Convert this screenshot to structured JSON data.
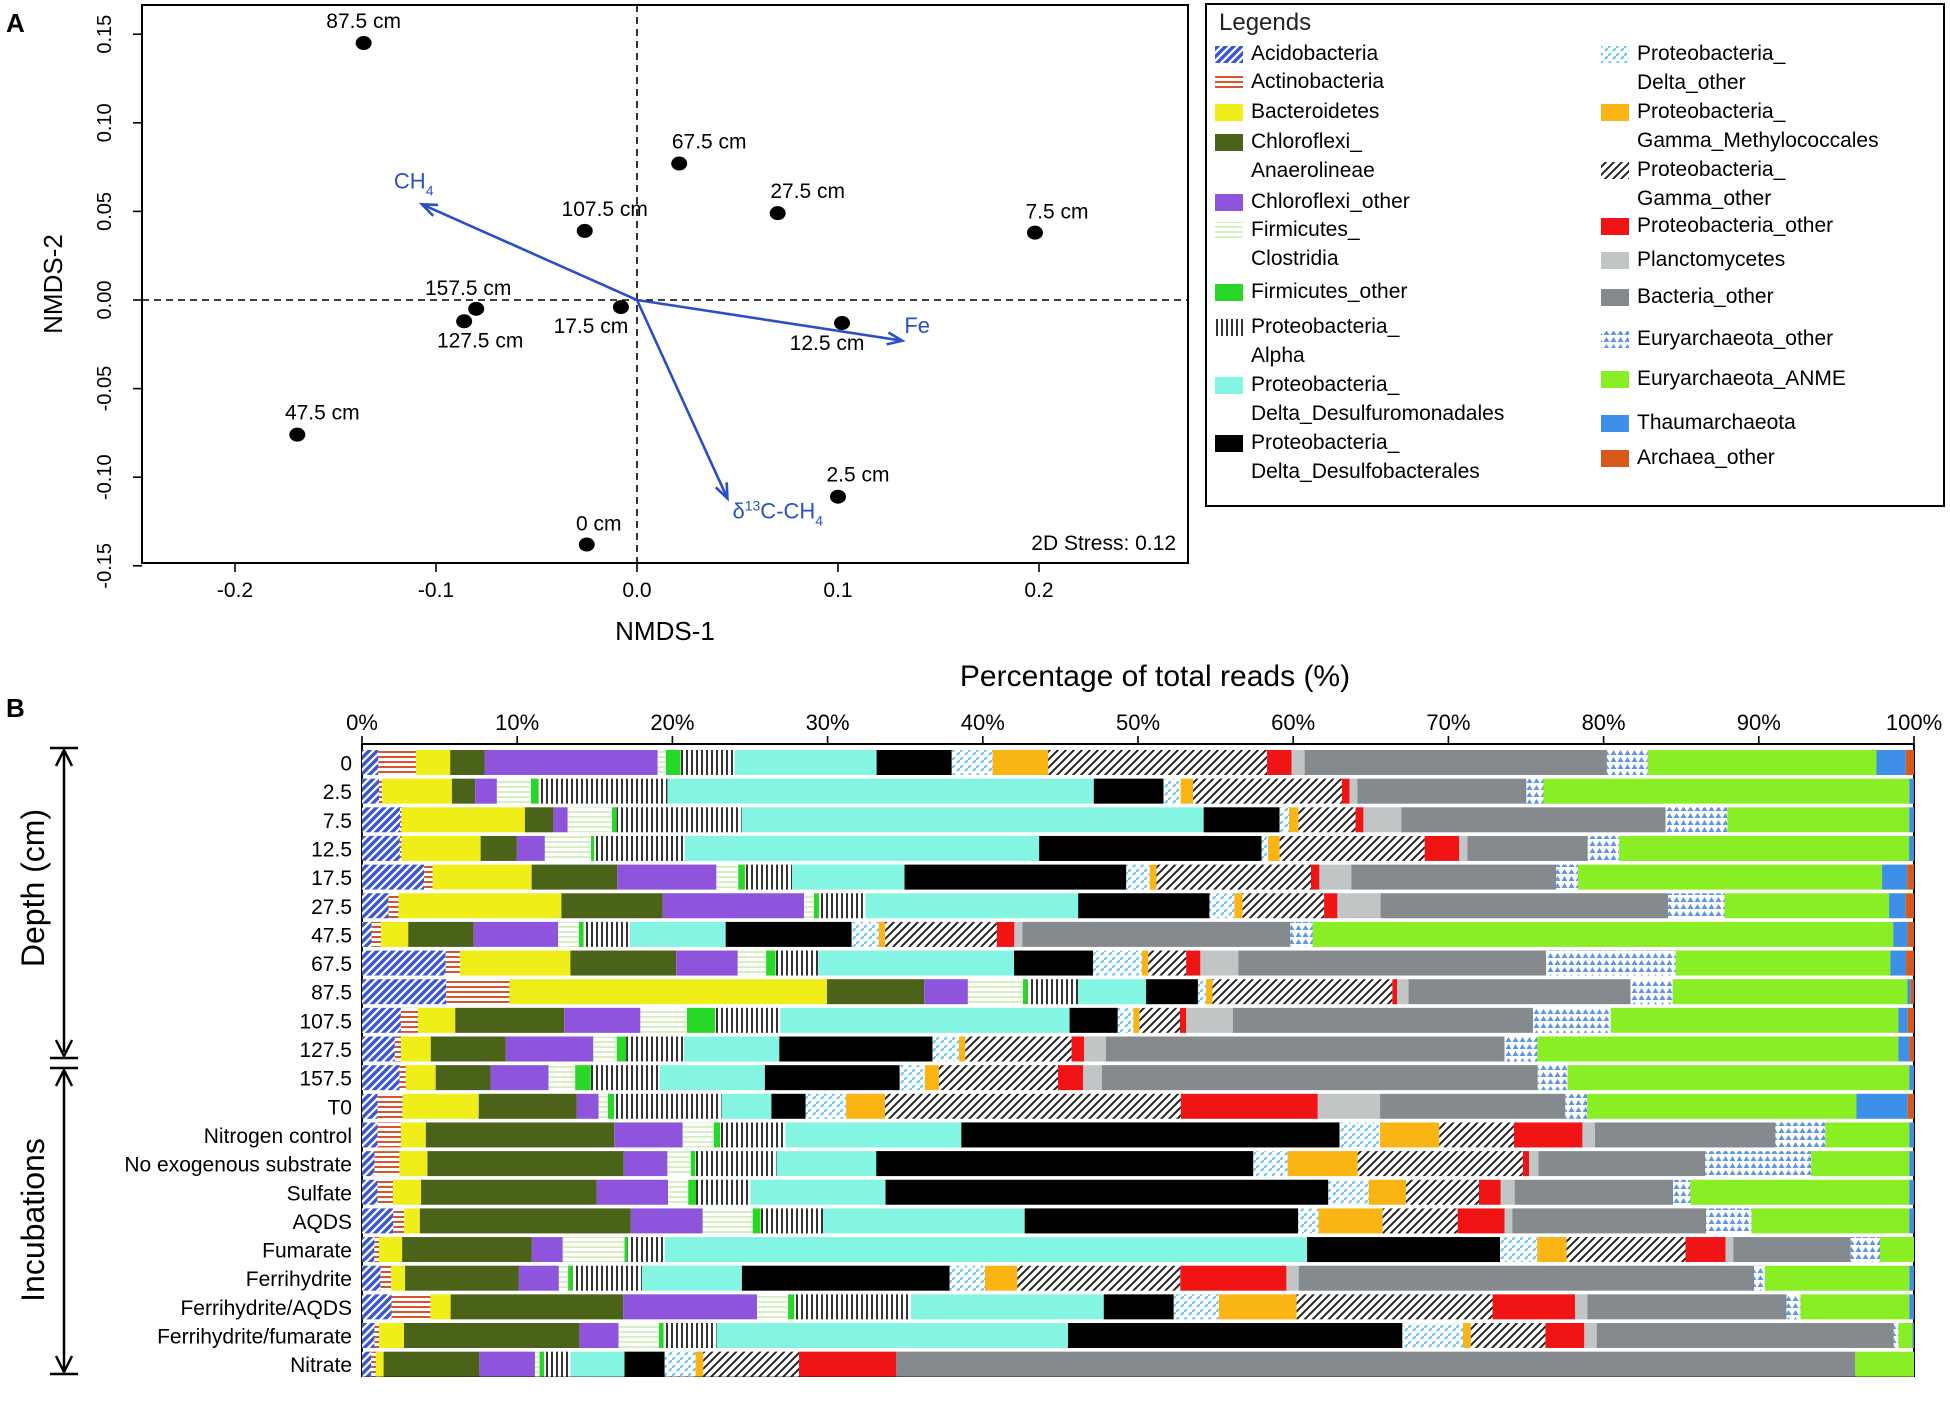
{
  "panel_labels": {
    "a": "A",
    "b": "B"
  },
  "colors": {
    "Acidobacteria": "#3a55d6",
    "Actinobacteria": "#d8532a",
    "Bacteroidetes": "#f0ee18",
    "Chloroflexi_Anaerolineae": "#4b6318",
    "Chloroflexi_other": "#8e55dc",
    "Firmicutes_Clostridia": "#d6efc0",
    "Firmicutes_other": "#27d827",
    "Proteobacteria_Alpha": "#333333",
    "Proteobacteria_Delta_Desulfuromonadales": "#84f5e3",
    "Proteobacteria_Delta_Desulfobacterales": "#000000",
    "Proteobacteria_Delta_other": "#6cc6ee",
    "Proteobacteria_Gamma_Methylococcales": "#fab514",
    "Proteobacteria_Gamma_other": "#222222",
    "Proteobacteria_other": "#f01414",
    "Planctomycetes": "#c2c5c6",
    "Bacteria_other": "#858a8f",
    "Euryarchaeota_other": "#5f95e8",
    "Euryarchaeota_ANME": "#8aee25",
    "Thaumarchaeota": "#3e8fe8",
    "Archaea_other": "#d85a1a",
    "vector": "#2a50c8"
  },
  "chart_data": [
    {
      "type": "scatter",
      "title": "",
      "xlabel": "NMDS-1",
      "ylabel": "NMDS-2",
      "xlim": [
        -0.25,
        0.275
      ],
      "ylim": [
        -0.155,
        0.165
      ],
      "xticks": [
        "-0.2",
        "-0.1",
        "0.0",
        "0.1",
        "0.2"
      ],
      "yticks": [
        "-0.15",
        "-0.10",
        "-0.05",
        "0.00",
        "0.05",
        "0.10",
        "0.15"
      ],
      "stress_label": "2D Stress: 0.12",
      "points": [
        {
          "label": "87.5 cm",
          "x": -0.136,
          "y": 0.145
        },
        {
          "label": "67.5 cm",
          "x": 0.021,
          "y": 0.077
        },
        {
          "label": "27.5 cm",
          "x": 0.07,
          "y": 0.049
        },
        {
          "label": "107.5 cm",
          "x": -0.026,
          "y": 0.039
        },
        {
          "label": "7.5 cm",
          "x": 0.198,
          "y": 0.038
        },
        {
          "label": "157.5 cm",
          "x": -0.08,
          "y": -0.005
        },
        {
          "label": "127.5 cm",
          "x": -0.086,
          "y": -0.012
        },
        {
          "label": "17.5 cm",
          "x": -0.008,
          "y": -0.004
        },
        {
          "label": "12.5 cm",
          "x": 0.102,
          "y": -0.013
        },
        {
          "label": "47.5 cm",
          "x": -0.169,
          "y": -0.076
        },
        {
          "label": "2.5 cm",
          "x": 0.1,
          "y": -0.111
        },
        {
          "label": "0 cm",
          "x": -0.025,
          "y": -0.138
        }
      ],
      "vectors": [
        {
          "label": "CH",
          "sub": "4",
          "x": -0.107,
          "y": 0.054
        },
        {
          "label": "Fe",
          "x": 0.132,
          "y": -0.023
        },
        {
          "label": "δ",
          "sup": "13",
          "label2": "C-CH",
          "sub": "4",
          "x": 0.045,
          "y": -0.112
        }
      ]
    },
    {
      "type": "bar",
      "orientation": "horizontal-stacked",
      "title": "Percentage of total reads (%)",
      "xlim": [
        0,
        100
      ],
      "xticks": [
        "0%",
        "10%",
        "20%",
        "30%",
        "40%",
        "50%",
        "60%",
        "70%",
        "80%",
        "90%",
        "100%"
      ],
      "group_labels": [
        "Depth (cm)",
        "Incubations"
      ],
      "legend_title": "Legends",
      "series": [
        {
          "key": "Acidobacteria",
          "name": [
            "Acidobacteria"
          ],
          "pattern": "diag"
        },
        {
          "key": "Actinobacteria",
          "name": [
            "Actinobacteria"
          ],
          "pattern": "hlines"
        },
        {
          "key": "Bacteroidetes",
          "name": [
            "Bacteroidetes"
          ],
          "pattern": "solid"
        },
        {
          "key": "Chloroflexi_Anaerolineae",
          "name": [
            "Chloroflexi_",
            "Anaerolineae"
          ],
          "pattern": "solid"
        },
        {
          "key": "Chloroflexi_other",
          "name": [
            "Chloroflexi_other"
          ],
          "pattern": "solid"
        },
        {
          "key": "Firmicutes_Clostridia",
          "name": [
            "Firmicutes_",
            "Clostridia"
          ],
          "pattern": "lightlines"
        },
        {
          "key": "Firmicutes_other",
          "name": [
            "Firmicutes_other"
          ],
          "pattern": "solid"
        },
        {
          "key": "Proteobacteria_Alpha",
          "name": [
            "Proteobacteria_",
            "Alpha"
          ],
          "pattern": "vlines"
        },
        {
          "key": "Proteobacteria_Delta_Desulfuromonadales",
          "name": [
            "Proteobacteria_",
            "Delta_Desulfuromonadales"
          ],
          "pattern": "solid"
        },
        {
          "key": "Proteobacteria_Delta_Desulfobacterales",
          "name": [
            "Proteobacteria_",
            "Delta_Desulfobacterales"
          ],
          "pattern": "solid"
        },
        {
          "key": "Proteobacteria_Delta_other",
          "name": [
            "Proteobacteria_",
            "Delta_other"
          ],
          "pattern": "dashdiag"
        },
        {
          "key": "Proteobacteria_Gamma_Methylococcales",
          "name": [
            "Proteobacteria_",
            "Gamma_Methylococcales"
          ],
          "pattern": "solid"
        },
        {
          "key": "Proteobacteria_Gamma_other",
          "name": [
            "Proteobacteria_",
            "Gamma_other"
          ],
          "pattern": "blackdiag"
        },
        {
          "key": "Proteobacteria_other",
          "name": [
            "Proteobacteria_other"
          ],
          "pattern": "solid"
        },
        {
          "key": "Planctomycetes",
          "name": [
            "Planctomycetes"
          ],
          "pattern": "solid"
        },
        {
          "key": "Bacteria_other",
          "name": [
            "Bacteria_other"
          ],
          "pattern": "solid"
        },
        {
          "key": "Euryarchaeota_other",
          "name": [
            "Euryarchaeota_other"
          ],
          "pattern": "triangles"
        },
        {
          "key": "Euryarchaeota_ANME",
          "name": [
            "Euryarchaeota_ANME"
          ],
          "pattern": "solid"
        },
        {
          "key": "Thaumarchaeota",
          "name": [
            "Thaumarchaeota"
          ],
          "pattern": "solid"
        },
        {
          "key": "Archaea_other",
          "name": [
            "Archaea_other"
          ],
          "pattern": "solid"
        }
      ],
      "rows": [
        {
          "label": "0",
          "group": "Depth (cm)",
          "values": [
            1.0,
            2.3,
            2.1,
            2.1,
            10.6,
            0.5,
            0.9,
            3.3,
            8.7,
            4.6,
            2.5,
            3.4,
            13.4,
            1.5,
            0.8,
            18.5,
            2.5,
            14.0,
            1.8,
            0.5
          ]
        },
        {
          "label": "2.5",
          "group": "Depth (cm)",
          "values": [
            1.1,
            0.2,
            4.5,
            1.5,
            1.4,
            2.2,
            0.5,
            8.3,
            27.5,
            4.5,
            1.1,
            0.8,
            9.6,
            0.5,
            0.5,
            10.9,
            1.1,
            23.6,
            0.3,
            0.0
          ]
        },
        {
          "label": "7.5",
          "group": "Depth (cm)",
          "values": [
            2.4,
            0.1,
            7.8,
            1.8,
            0.9,
            2.8,
            0.3,
            7.9,
            29.2,
            4.8,
            0.6,
            0.6,
            3.6,
            0.5,
            2.4,
            16.7,
            3.9,
            11.5,
            0.3,
            0.0
          ]
        },
        {
          "label": "12.5",
          "group": "Depth (cm)",
          "values": [
            2.3,
            0.1,
            4.8,
            2.2,
            1.7,
            2.8,
            0.2,
            5.5,
            21.5,
            13.5,
            0.4,
            0.7,
            8.8,
            2.1,
            0.5,
            7.3,
            1.9,
            17.6,
            0.3,
            0.0
          ]
        },
        {
          "label": "17.5",
          "group": "Depth (cm)",
          "values": [
            3.7,
            0.5,
            5.9,
            5.1,
            5.9,
            1.3,
            0.4,
            2.8,
            6.7,
            13.2,
            1.4,
            0.4,
            9.2,
            0.5,
            1.9,
            12.2,
            1.3,
            18.1,
            1.5,
            0.4
          ]
        },
        {
          "label": "27.5",
          "group": "Depth (cm)",
          "values": [
            1.6,
            0.6,
            9.8,
            6.1,
            8.5,
            0.6,
            0.3,
            2.8,
            12.8,
            7.9,
            1.5,
            0.5,
            4.9,
            0.8,
            2.6,
            17.3,
            3.4,
            9.9,
            1.0,
            0.5
          ]
        },
        {
          "label": "47.5",
          "group": "Depth (cm)",
          "values": [
            0.6,
            0.6,
            1.7,
            4.1,
            5.3,
            1.3,
            0.3,
            2.9,
            6.0,
            7.9,
            1.7,
            0.4,
            7.0,
            1.1,
            0.5,
            16.8,
            1.4,
            36.4,
            0.9,
            0.4
          ]
        },
        {
          "label": "67.5",
          "group": "Depth (cm)",
          "values": [
            5.3,
            0.9,
            7.0,
            6.7,
            3.9,
            1.8,
            0.6,
            2.7,
            12.4,
            5.0,
            3.1,
            0.4,
            2.4,
            0.9,
            2.4,
            19.5,
            8.2,
            13.6,
            1.0,
            0.5
          ]
        },
        {
          "label": "87.5",
          "group": "Depth (cm)",
          "values": [
            5.2,
            3.9,
            19.6,
            6.0,
            2.7,
            3.4,
            0.3,
            3.1,
            4.2,
            3.2,
            0.5,
            0.4,
            11.1,
            0.3,
            0.7,
            13.7,
            2.6,
            14.5,
            0.2,
            0.2
          ]
        },
        {
          "label": "107.5",
          "group": "Depth (cm)",
          "values": [
            2.5,
            1.1,
            2.4,
            7.0,
            4.9,
            3.0,
            1.8,
            4.2,
            18.6,
            3.1,
            1.0,
            0.4,
            2.6,
            0.4,
            3.0,
            19.3,
            5.0,
            18.5,
            0.6,
            0.4
          ]
        },
        {
          "label": "127.5",
          "group": "Depth (cm)",
          "values": [
            2.1,
            0.4,
            1.9,
            4.8,
            5.6,
            1.5,
            0.6,
            3.7,
            6.1,
            9.8,
            1.7,
            0.4,
            6.8,
            0.8,
            1.4,
            25.5,
            2.1,
            23.1,
            0.7,
            0.3
          ]
        },
        {
          "label": "157.5",
          "group": "Depth (cm)",
          "values": [
            2.4,
            0.4,
            1.9,
            3.5,
            3.7,
            1.7,
            1.0,
            4.4,
            6.7,
            8.6,
            1.6,
            0.9,
            7.6,
            1.6,
            1.2,
            27.8,
            1.9,
            21.8,
            0.3,
            0.0
          ]
        },
        {
          "label": "T0",
          "group": "Incubations",
          "values": [
            1.0,
            1.6,
            4.9,
            6.3,
            1.4,
            0.6,
            0.4,
            6.9,
            3.2,
            2.2,
            2.6,
            2.5,
            19.0,
            8.8,
            4.0,
            11.9,
            1.4,
            17.3,
            3.3,
            0.4
          ]
        },
        {
          "label": "Nitrogen control",
          "group": "Incubations",
          "values": [
            1.0,
            1.5,
            1.6,
            12.1,
            4.4,
            2.0,
            0.4,
            4.2,
            11.3,
            24.3,
            2.6,
            3.8,
            4.8,
            4.4,
            0.8,
            11.6,
            3.2,
            5.4,
            0.3,
            0.0
          ]
        },
        {
          "label": "No exogenous substrate",
          "group": "Incubations",
          "values": [
            0.8,
            1.6,
            1.8,
            12.6,
            2.8,
            1.5,
            0.3,
            5.2,
            6.4,
            24.2,
            2.2,
            4.5,
            10.6,
            0.4,
            0.6,
            10.7,
            6.8,
            6.3,
            0.3,
            0.0
          ]
        },
        {
          "label": "Sulfate",
          "group": "Incubations",
          "values": [
            1.0,
            1.0,
            1.8,
            11.3,
            4.6,
            1.3,
            0.5,
            3.5,
            8.7,
            28.5,
            2.6,
            2.4,
            4.7,
            1.4,
            0.9,
            10.2,
            1.1,
            14.1,
            0.3,
            0.0
          ]
        },
        {
          "label": "AQDS",
          "group": "Incubations",
          "values": [
            2.0,
            0.7,
            1.0,
            13.5,
            4.6,
            3.2,
            0.5,
            4.0,
            12.9,
            17.5,
            1.3,
            4.1,
            4.8,
            3.0,
            0.5,
            12.4,
            2.9,
            10.1,
            0.3,
            0.0
          ]
        },
        {
          "label": "Fumarate",
          "group": "Incubations",
          "values": [
            0.8,
            0.3,
            1.5,
            8.4,
            2.0,
            4.0,
            0.2,
            2.4,
            41.6,
            12.5,
            2.4,
            1.9,
            7.7,
            2.6,
            0.5,
            7.6,
            1.9,
            2.2,
            0.0,
            0.0
          ]
        },
        {
          "label": "Ferrihydrite",
          "group": "Incubations",
          "values": [
            1.2,
            0.7,
            0.9,
            7.4,
            2.6,
            0.6,
            0.3,
            4.5,
            6.5,
            13.5,
            2.3,
            2.1,
            10.6,
            6.9,
            0.8,
            29.6,
            0.7,
            9.4,
            0.3,
            0.0
          ]
        },
        {
          "label": "Ferrihydrite/AQDS",
          "group": "Incubations",
          "values": [
            1.9,
            2.5,
            1.3,
            11.1,
            8.6,
            2.0,
            0.4,
            7.5,
            12.4,
            4.5,
            2.9,
            5.0,
            12.6,
            5.3,
            0.8,
            12.8,
            0.9,
            7.0,
            0.3,
            0.0
          ]
        },
        {
          "label": "Ferrihydrite/fumarate",
          "group": "Incubations",
          "values": [
            0.8,
            0.3,
            1.6,
            11.3,
            2.5,
            2.6,
            0.3,
            3.4,
            22.6,
            21.5,
            3.9,
            0.5,
            4.8,
            2.5,
            0.8,
            19.1,
            0.3,
            0.9,
            0.1,
            0.0
          ]
        },
        {
          "label": "Nitrate",
          "group": "Incubations",
          "values": [
            0.6,
            0.3,
            0.5,
            6.2,
            3.6,
            0.3,
            0.3,
            1.7,
            3.5,
            2.6,
            2.0,
            0.5,
            6.2,
            6.3,
            0.0,
            62.1,
            0.0,
            3.8,
            0.0,
            0.0
          ]
        }
      ]
    }
  ]
}
